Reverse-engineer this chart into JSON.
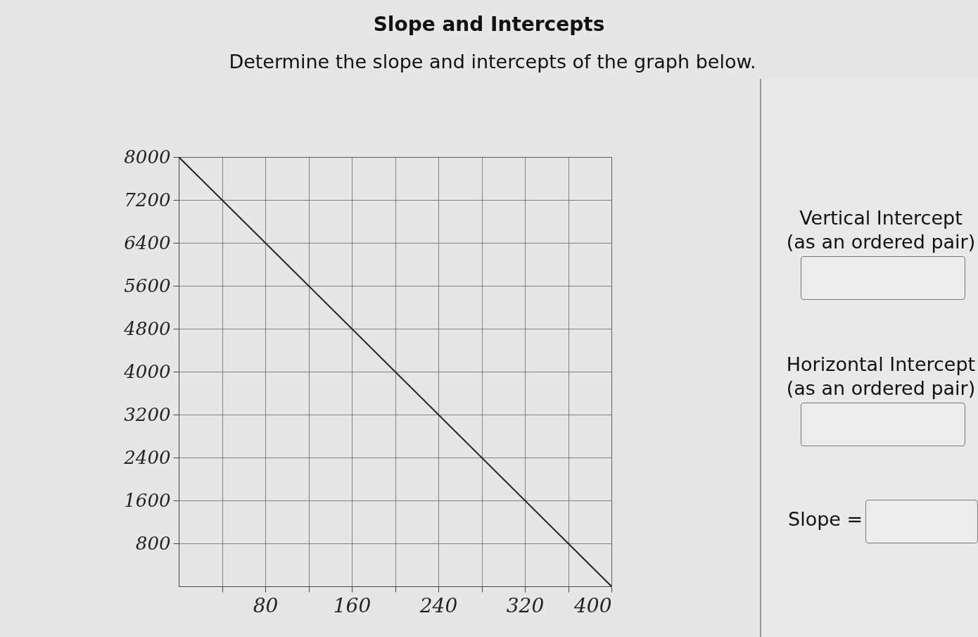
{
  "chart_data": {
    "type": "line",
    "title": "Slope and Intercepts",
    "subtitle": "Determine the slope and intercepts of the graph below.",
    "x": [
      0,
      400
    ],
    "series": [
      {
        "color": "#222222",
        "values": [
          8000,
          0
        ]
      }
    ],
    "xlim": [
      0,
      400
    ],
    "ylim": [
      0,
      8000
    ],
    "xticks": [
      {
        "value": 40,
        "label": null
      },
      80,
      {
        "value": 120,
        "label": null
      },
      160,
      {
        "value": 200,
        "label": null
      },
      240,
      {
        "value": 280,
        "label": null
      },
      320,
      {
        "value": 360,
        "label": null
      },
      400
    ],
    "yticks": [
      800,
      1600,
      2400,
      3200,
      4000,
      4800,
      5600,
      6400,
      7200,
      8000
    ],
    "grid": true,
    "annotations": [
      "Vertical Intercept",
      "(as an ordered pair)",
      "Horizontal Intercept",
      "(as an ordered pair)",
      "Slope ="
    ]
  }
}
